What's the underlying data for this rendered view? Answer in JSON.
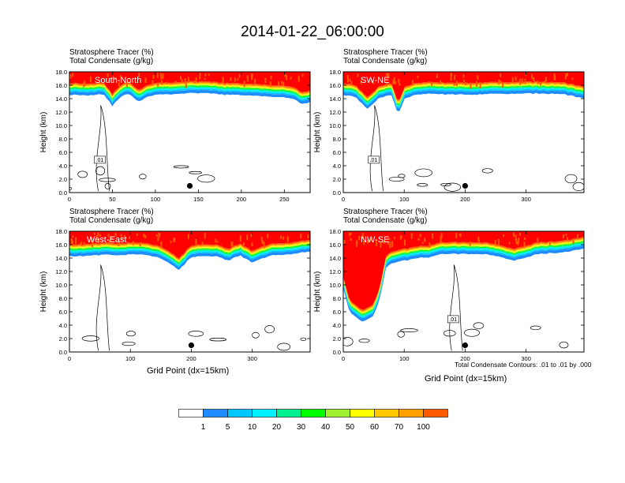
{
  "title": "2014-01-22_06:00:00",
  "label_line1": "Stratosphere Tracer   (%)",
  "label_line2": "Total Condensate   (g/kg)",
  "y_axis_label": "Height (km)",
  "x_axis_label": "Grid Point (dx=15km)",
  "contour_note": "Total Condensate Contours: .01 to .01 by .000",
  "colors": {
    "palette": [
      "#ffffff",
      "#1e8cff",
      "#00c8ff",
      "#00f0ff",
      "#00f090",
      "#00ff00",
      "#a0f032",
      "#ffff00",
      "#ffc800",
      "#ffa000",
      "#ff5a00",
      "#ff0000"
    ],
    "contour": "#000000"
  },
  "chart_data": [
    {
      "type": "heatmap",
      "panel": "top-left",
      "name": "South-North",
      "xlim": [
        0,
        280
      ],
      "ylim": [
        0,
        18
      ],
      "xticks": [
        "0",
        "50",
        "100",
        "150",
        "200",
        "250"
      ],
      "yticks": [
        "0.0",
        "2.0",
        "4.0",
        "6.0",
        "8.0",
        "10.0",
        "12.0",
        "14.0",
        "16.0",
        "18.0"
      ],
      "contour_label": ".01",
      "tracer_boundary": {
        "x": [
          0,
          20,
          30,
          40,
          50,
          60,
          70,
          80,
          90,
          100,
          120,
          140,
          160,
          180,
          200,
          220,
          240,
          260,
          270,
          280
        ],
        "height": [
          14.6,
          14.5,
          14.6,
          14.7,
          12.9,
          14.4,
          14.7,
          13.5,
          14.3,
          14.6,
          14.7,
          14.8,
          14.8,
          14.6,
          14.5,
          14.4,
          14.3,
          14.0,
          13.2,
          13.5
        ]
      },
      "marker": {
        "x": 140,
        "height": 1.0
      }
    },
    {
      "type": "heatmap",
      "panel": "top-right",
      "name": "SW-NE",
      "xlim": [
        0,
        395
      ],
      "ylim": [
        0,
        18
      ],
      "xticks": [
        "0",
        "100",
        "200",
        "300"
      ],
      "yticks": [
        "0.0",
        "2.0",
        "4.0",
        "6.0",
        "8.0",
        "10.0",
        "12.0",
        "14.0",
        "16.0",
        "18.0"
      ],
      "contour_label": ".01",
      "tracer_boundary": {
        "x": [
          0,
          20,
          40,
          60,
          80,
          90,
          100,
          120,
          140,
          160,
          180,
          200,
          240,
          280,
          320,
          360,
          380,
          395
        ],
        "height": [
          14.5,
          14.3,
          12.4,
          14.2,
          14.5,
          11.5,
          14.0,
          14.6,
          14.7,
          14.7,
          14.6,
          14.6,
          14.7,
          14.7,
          14.8,
          14.7,
          14.3,
          14.0
        ]
      },
      "marker": {
        "x": 200,
        "height": 1.0
      }
    },
    {
      "type": "heatmap",
      "panel": "bottom-left",
      "name": "West-East",
      "xlim": [
        0,
        395
      ],
      "ylim": [
        0,
        18
      ],
      "xticks": [
        "0",
        "100",
        "200",
        "300"
      ],
      "yticks": [
        "0.0",
        "2.0",
        "4.0",
        "6.0",
        "8.0",
        "10.0",
        "12.0",
        "14.0",
        "16.0",
        "18.0"
      ],
      "contour_label": "",
      "tracer_boundary": {
        "x": [
          0,
          20,
          40,
          60,
          80,
          100,
          120,
          150,
          180,
          200,
          240,
          260,
          280,
          300,
          330,
          360,
          395
        ],
        "height": [
          14.3,
          14.3,
          14.4,
          14.5,
          14.4,
          14.5,
          14.6,
          14.0,
          12.2,
          14.2,
          14.3,
          13.6,
          14.4,
          13.3,
          14.4,
          14.5,
          15.0
        ]
      },
      "marker": {
        "x": 200,
        "height": 1.0
      }
    },
    {
      "type": "heatmap",
      "panel": "bottom-right",
      "name": "NW-SE",
      "xlim": [
        0,
        395
      ],
      "ylim": [
        0,
        18
      ],
      "xticks": [
        "0",
        "100",
        "200",
        "300"
      ],
      "yticks": [
        "0.0",
        "2.0",
        "4.0",
        "6.0",
        "8.0",
        "10.0",
        "12.0",
        "14.0",
        "16.0",
        "18.0"
      ],
      "contour_label": ".01",
      "tracer_boundary": {
        "x": [
          0,
          10,
          20,
          30,
          40,
          50,
          60,
          70,
          80,
          100,
          120,
          140,
          160,
          200,
          240,
          280,
          320,
          360,
          395
        ],
        "height": [
          9.5,
          6.0,
          5.2,
          4.5,
          4.8,
          5.5,
          8.0,
          12.5,
          13.3,
          13.6,
          14.0,
          14.1,
          14.6,
          14.6,
          14.5,
          13.6,
          14.6,
          14.8,
          15.4
        ]
      },
      "marker": {
        "x": 200,
        "height": 1.0
      }
    }
  ],
  "colorbar": {
    "labels": [
      "1",
      "5",
      "10",
      "20",
      "30",
      "40",
      "50",
      "60",
      "70",
      "100"
    ]
  }
}
